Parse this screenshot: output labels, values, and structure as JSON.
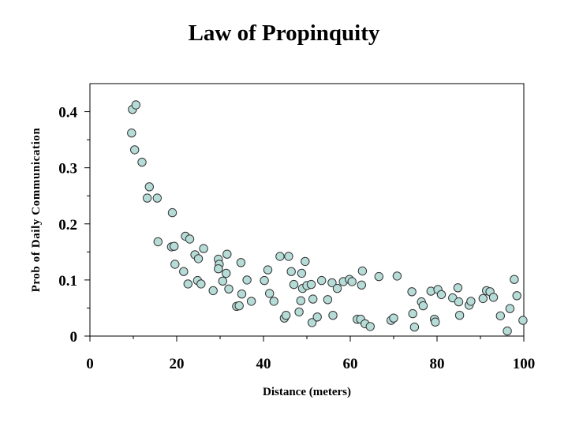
{
  "chart_data": {
    "type": "scatter",
    "title": "Law of Propinquity",
    "xlabel": "Distance (meters)",
    "ylabel": "Prob of Daily Communication",
    "xlim": [
      0,
      100
    ],
    "ylim": [
      0,
      0.45
    ],
    "xticks": [
      "0",
      "20",
      "40",
      "60",
      "80",
      "100"
    ],
    "yticks": [
      "0",
      "0.1",
      "0.2",
      "0.3",
      "0.4"
    ],
    "marker_fill": "#b6dcd8",
    "marker_stroke": "#333333",
    "points": [
      [
        9.6,
        0.362
      ],
      [
        9.8,
        0.404
      ],
      [
        10.3,
        0.332
      ],
      [
        10.6,
        0.412
      ],
      [
        12,
        0.31
      ],
      [
        13.2,
        0.246
      ],
      [
        13.7,
        0.266
      ],
      [
        15.5,
        0.246
      ],
      [
        15.7,
        0.168
      ],
      [
        18.8,
        0.159
      ],
      [
        19,
        0.22
      ],
      [
        19.4,
        0.16
      ],
      [
        19.6,
        0.128
      ],
      [
        21.6,
        0.115
      ],
      [
        22,
        0.178
      ],
      [
        22.6,
        0.093
      ],
      [
        23,
        0.173
      ],
      [
        24.2,
        0.145
      ],
      [
        24.8,
        0.099
      ],
      [
        25,
        0.138
      ],
      [
        25.6,
        0.093
      ],
      [
        26.2,
        0.156
      ],
      [
        28.4,
        0.081
      ],
      [
        29.6,
        0.137
      ],
      [
        29.8,
        0.128
      ],
      [
        29.6,
        0.12
      ],
      [
        30.6,
        0.098
      ],
      [
        31.4,
        0.112
      ],
      [
        31.6,
        0.146
      ],
      [
        32,
        0.084
      ],
      [
        33.8,
        0.053
      ],
      [
        34.4,
        0.054
      ],
      [
        34.8,
        0.131
      ],
      [
        35,
        0.075
      ],
      [
        36.2,
        0.1
      ],
      [
        37.2,
        0.062
      ],
      [
        40.2,
        0.099
      ],
      [
        41,
        0.118
      ],
      [
        41.4,
        0.076
      ],
      [
        42.4,
        0.062
      ],
      [
        43.8,
        0.142
      ],
      [
        44.8,
        0.032
      ],
      [
        45.2,
        0.037
      ],
      [
        45.8,
        0.142
      ],
      [
        46.4,
        0.115
      ],
      [
        47,
        0.092
      ],
      [
        48.2,
        0.043
      ],
      [
        48.6,
        0.063
      ],
      [
        48.8,
        0.112
      ],
      [
        49,
        0.085
      ],
      [
        49.6,
        0.133
      ],
      [
        50,
        0.09
      ],
      [
        51,
        0.092
      ],
      [
        51.2,
        0.024
      ],
      [
        51.4,
        0.066
      ],
      [
        52.4,
        0.034
      ],
      [
        53.4,
        0.099
      ],
      [
        54.8,
        0.065
      ],
      [
        55.8,
        0.095
      ],
      [
        56,
        0.037
      ],
      [
        57,
        0.085
      ],
      [
        58.4,
        0.097
      ],
      [
        59.8,
        0.101
      ],
      [
        60.4,
        0.097
      ],
      [
        61.6,
        0.03
      ],
      [
        62.4,
        0.03
      ],
      [
        62.8,
        0.116
      ],
      [
        62.6,
        0.091
      ],
      [
        63.4,
        0.022
      ],
      [
        64.6,
        0.017
      ],
      [
        66.6,
        0.106
      ],
      [
        69.4,
        0.028
      ],
      [
        70,
        0.032
      ],
      [
        70.8,
        0.107
      ],
      [
        74.2,
        0.079
      ],
      [
        74.4,
        0.04
      ],
      [
        74.8,
        0.016
      ],
      [
        76.4,
        0.061
      ],
      [
        76.8,
        0.054
      ],
      [
        78.6,
        0.08
      ],
      [
        79.4,
        0.03
      ],
      [
        79.6,
        0.025
      ],
      [
        80.2,
        0.083
      ],
      [
        81,
        0.074
      ],
      [
        83.6,
        0.068
      ],
      [
        84.8,
        0.086
      ],
      [
        85,
        0.061
      ],
      [
        85.2,
        0.037
      ],
      [
        87.4,
        0.055
      ],
      [
        87.8,
        0.062
      ],
      [
        90.6,
        0.067
      ],
      [
        91.4,
        0.081
      ],
      [
        92.2,
        0.079
      ],
      [
        93,
        0.069
      ],
      [
        94.6,
        0.036
      ],
      [
        96.2,
        0.009
      ],
      [
        96.8,
        0.049
      ],
      [
        97.8,
        0.101
      ],
      [
        98.4,
        0.072
      ],
      [
        99.8,
        0.028
      ]
    ]
  }
}
